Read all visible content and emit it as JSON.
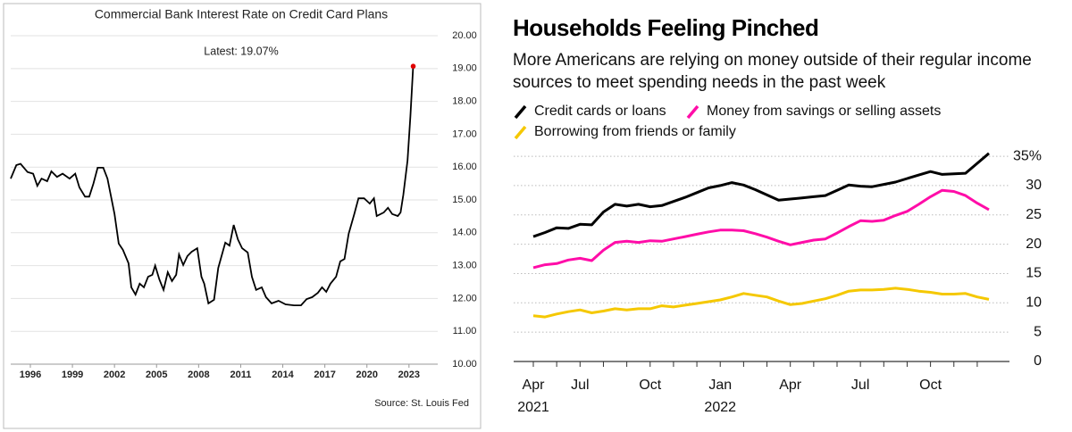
{
  "chart_data": [
    {
      "type": "line",
      "title": "Commercial Bank Interest Rate on Credit Card Plans",
      "annotation": "Latest:  19.07%",
      "source": "Source: St. Louis Fed",
      "color": "#000000",
      "highlight_color": "#e00000",
      "x": [
        1994.6,
        1995,
        1995.3,
        1995.8,
        1996.2,
        1996.5,
        1996.8,
        1997.2,
        1997.5,
        1997.9,
        1998.3,
        1998.8,
        1999.2,
        1999.5,
        1999.9,
        2000.2,
        2000.5,
        2000.8,
        2001.2,
        2001.5,
        2002,
        2002.3,
        2002.6,
        2003,
        2003.2,
        2003.5,
        2003.8,
        2004.1,
        2004.4,
        2004.7,
        2004.9,
        2005.2,
        2005.5,
        2005.8,
        2006.1,
        2006.4,
        2006.6,
        2006.9,
        2007.2,
        2007.5,
        2007.9,
        2008.2,
        2008.4,
        2008.7,
        2009.1,
        2009.4,
        2009.9,
        2010.2,
        2010.5,
        2010.8,
        2011.1,
        2011.5,
        2011.8,
        2012.1,
        2012.5,
        2012.8,
        2013.2,
        2013.7,
        2014.2,
        2014.8,
        2015.3,
        2015.7,
        2016.1,
        2016.5,
        2016.8,
        2017.1,
        2017.4,
        2017.8,
        2018.1,
        2018.4,
        2018.7,
        2019.1,
        2019.4,
        2019.8,
        2020.2,
        2020.5,
        2020.7,
        2021.2,
        2021.5,
        2021.8,
        2022.2,
        2022.4,
        2022.6,
        2022.9,
        2023.1,
        2023.3
      ],
      "values": [
        15.65,
        16.06,
        16.1,
        15.85,
        15.8,
        15.43,
        15.65,
        15.57,
        15.87,
        15.7,
        15.8,
        15.65,
        15.8,
        15.38,
        15.1,
        15.1,
        15.5,
        15.98,
        15.98,
        15.65,
        14.57,
        13.67,
        13.48,
        13.07,
        12.34,
        12.12,
        12.45,
        12.34,
        12.66,
        12.72,
        13.0,
        12.58,
        12.26,
        12.8,
        12.53,
        12.72,
        13.34,
        13.02,
        13.29,
        13.42,
        13.53,
        12.66,
        12.45,
        11.85,
        11.96,
        12.93,
        13.7,
        13.61,
        14.24,
        13.8,
        13.53,
        13.4,
        12.66,
        12.26,
        12.34,
        12.04,
        11.85,
        11.93,
        11.82,
        11.79,
        11.79,
        11.98,
        12.04,
        12.17,
        12.34,
        12.2,
        12.45,
        12.66,
        13.13,
        13.2,
        13.97,
        14.57,
        15.05,
        15.05,
        14.89,
        15.05,
        14.51,
        14.62,
        14.76,
        14.57,
        14.51,
        14.62,
        15.16,
        16.2,
        17.55,
        19.07
      ],
      "xlim": [
        1994.6,
        2025.05
      ],
      "xticks": [
        1996,
        1999,
        2002,
        2005,
        2008,
        2011,
        2014,
        2017,
        2020,
        2023
      ],
      "ylim": [
        10,
        20.87
      ],
      "yticks": [
        {
          "value": 10,
          "label": "10.00"
        },
        {
          "value": 11,
          "label": "11.00"
        },
        {
          "value": 12,
          "label": "12.00"
        },
        {
          "value": 13,
          "label": "13.00"
        },
        {
          "value": 14,
          "label": "14.00"
        },
        {
          "value": 15,
          "label": "15.00"
        },
        {
          "value": 16,
          "label": "16.00"
        },
        {
          "value": 17,
          "label": "17.00"
        },
        {
          "value": 18,
          "label": "18.00"
        },
        {
          "value": 19,
          "label": "19.00"
        },
        {
          "value": 20,
          "label": "20.00"
        }
      ],
      "grid": true
    },
    {
      "type": "line",
      "title": "Households Feeling Pinched",
      "subtitle": "More Americans are relying on money outside of their regular income sources to meet spending needs in the past week",
      "categories": [
        "Apr",
        null,
        null,
        null,
        "Jul",
        null,
        null,
        null,
        null,
        null,
        "Oct",
        null,
        null,
        null,
        null,
        null,
        "Jan",
        null,
        null,
        null,
        null,
        null,
        "Apr",
        null,
        null,
        null,
        null,
        null,
        "Jul",
        null,
        null,
        null,
        null,
        null,
        "Oct",
        null,
        null,
        null,
        null,
        null
      ],
      "category_years": [
        "2021",
        null,
        null,
        null,
        null,
        null,
        null,
        null,
        null,
        null,
        null,
        null,
        null,
        null,
        null,
        null,
        "2022",
        null,
        null,
        null,
        null,
        null,
        null,
        null,
        null,
        null,
        null,
        null,
        null,
        null,
        null,
        null,
        null,
        null,
        null,
        null,
        null,
        null,
        null,
        null
      ],
      "series": [
        {
          "name": "Credit cards or loans",
          "color": "#000000",
          "values": [
            21.3,
            22.0,
            22.8,
            22.7,
            23.4,
            23.3,
            25.5,
            26.8,
            26.5,
            26.8,
            26.4,
            26.6,
            27.3,
            28.0,
            28.8,
            29.6,
            30.0,
            30.5,
            30.1,
            29.3,
            28.4,
            27.5,
            27.7,
            27.9,
            28.1,
            28.3,
            29.2,
            30.1,
            29.9,
            29.8,
            30.2,
            30.6,
            31.2,
            31.8,
            32.4,
            31.9,
            32.0,
            32.1,
            33.8,
            35.5
          ]
        },
        {
          "name": "Money from savings or selling assets",
          "color": "#ff0da8",
          "values": [
            16.0,
            16.5,
            16.7,
            17.3,
            17.6,
            17.2,
            19.0,
            20.3,
            20.5,
            20.3,
            20.6,
            20.5,
            20.9,
            21.3,
            21.7,
            22.1,
            22.4,
            22.4,
            22.3,
            21.8,
            21.2,
            20.5,
            19.9,
            20.3,
            20.7,
            20.9,
            21.9,
            23.0,
            24.0,
            23.9,
            24.1,
            24.9,
            25.6,
            26.8,
            28.1,
            29.2,
            29.0,
            28.3,
            27.0,
            25.9
          ]
        },
        {
          "name": "Borrowing from friends or family",
          "color": "#f5c800",
          "values": [
            7.8,
            7.6,
            8.1,
            8.5,
            8.8,
            8.3,
            8.6,
            9.0,
            8.8,
            9.0,
            9.0,
            9.5,
            9.3,
            9.6,
            9.9,
            10.2,
            10.5,
            11.0,
            11.6,
            11.3,
            11.0,
            10.3,
            9.7,
            9.9,
            10.3,
            10.7,
            11.3,
            12.0,
            12.2,
            12.2,
            12.3,
            12.5,
            12.3,
            12.0,
            11.8,
            11.5,
            11.5,
            11.6,
            11.0,
            10.6
          ]
        }
      ],
      "ylim": [
        0,
        36
      ],
      "yticks": [
        0,
        5,
        10,
        15,
        20,
        25,
        30,
        {
          "value": 35,
          "label": "35%"
        }
      ],
      "grid": true
    }
  ]
}
